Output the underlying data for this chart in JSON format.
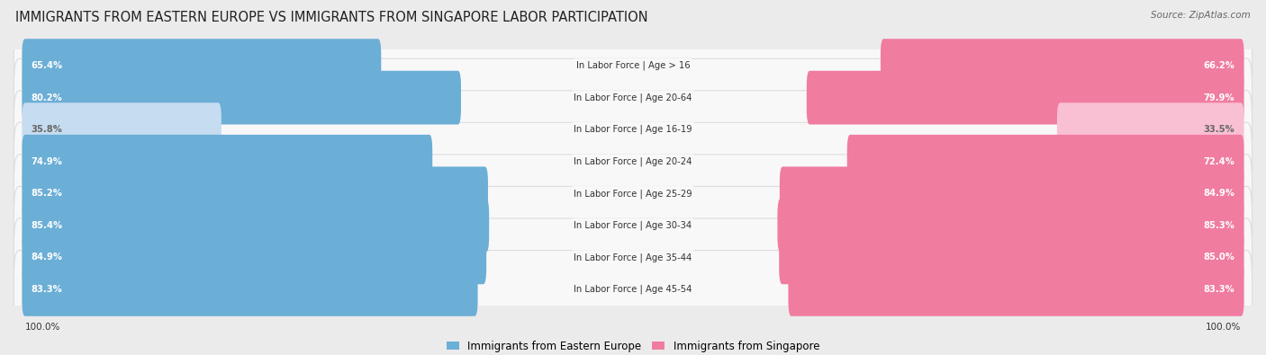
{
  "title": "IMMIGRANTS FROM EASTERN EUROPE VS IMMIGRANTS FROM SINGAPORE LABOR PARTICIPATION",
  "source": "Source: ZipAtlas.com",
  "categories": [
    "In Labor Force | Age > 16",
    "In Labor Force | Age 20-64",
    "In Labor Force | Age 16-19",
    "In Labor Force | Age 20-24",
    "In Labor Force | Age 25-29",
    "In Labor Force | Age 30-34",
    "In Labor Force | Age 35-44",
    "In Labor Force | Age 45-54"
  ],
  "eastern_europe": [
    65.4,
    80.2,
    35.8,
    74.9,
    85.2,
    85.4,
    84.9,
    83.3
  ],
  "singapore": [
    66.2,
    79.9,
    33.5,
    72.4,
    84.9,
    85.3,
    85.0,
    83.3
  ],
  "blue_color": "#6BAED6",
  "pink_color": "#F07CA0",
  "blue_light": "#C6DCF0",
  "pink_light": "#F9C0D4",
  "bg_color": "#EBEBEB",
  "row_bg_color": "#F8F8F8",
  "row_border_color": "#DDDDDD",
  "title_fontsize": 10.5,
  "label_fontsize": 7.2,
  "value_fontsize": 7.2,
  "legend_fontsize": 8.5,
  "max_val": 100.0,
  "bar_height": 0.68
}
